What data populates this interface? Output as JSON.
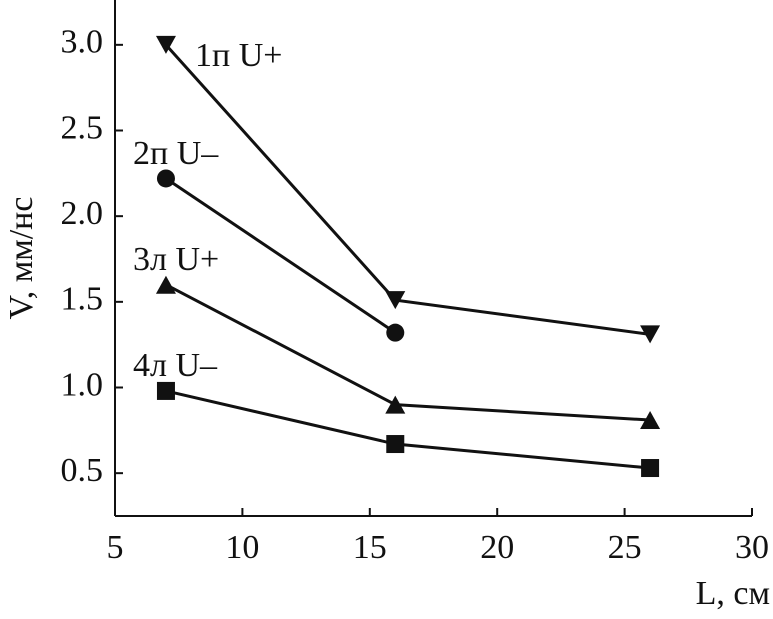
{
  "chart_data": {
    "type": "line",
    "x_label": "L, см",
    "y_label": "V, мм/нс",
    "xlim": [
      5,
      30
    ],
    "xticks": [
      5,
      10,
      15,
      20,
      25,
      30
    ],
    "ylim": [
      0.25,
      3.25
    ],
    "yticks": [
      0.5,
      {
        "value": 1,
        "label": "1.0"
      },
      1.5,
      {
        "value": 2,
        "label": "2.0"
      },
      2.5,
      {
        "value": 3,
        "label": "3.0"
      }
    ],
    "series": [
      {
        "name": "1п U+",
        "color": "#111111",
        "marker": "triangle-down",
        "x": [
          7,
          16,
          26
        ],
        "values": [
          3.0,
          1.51,
          1.31
        ]
      },
      {
        "name": "2п U–",
        "color": "#111111",
        "marker": "circle",
        "x": [
          7,
          16
        ],
        "values": [
          2.22,
          1.32
        ]
      },
      {
        "name": "3л U+",
        "color": "#111111",
        "marker": "triangle-up",
        "x": [
          7,
          16,
          26
        ],
        "values": [
          1.6,
          0.9,
          0.81
        ]
      },
      {
        "name": "4л U–",
        "color": "#111111",
        "marker": "square",
        "x": [
          7,
          16,
          26
        ],
        "values": [
          0.98,
          0.67,
          0.53
        ]
      }
    ]
  }
}
